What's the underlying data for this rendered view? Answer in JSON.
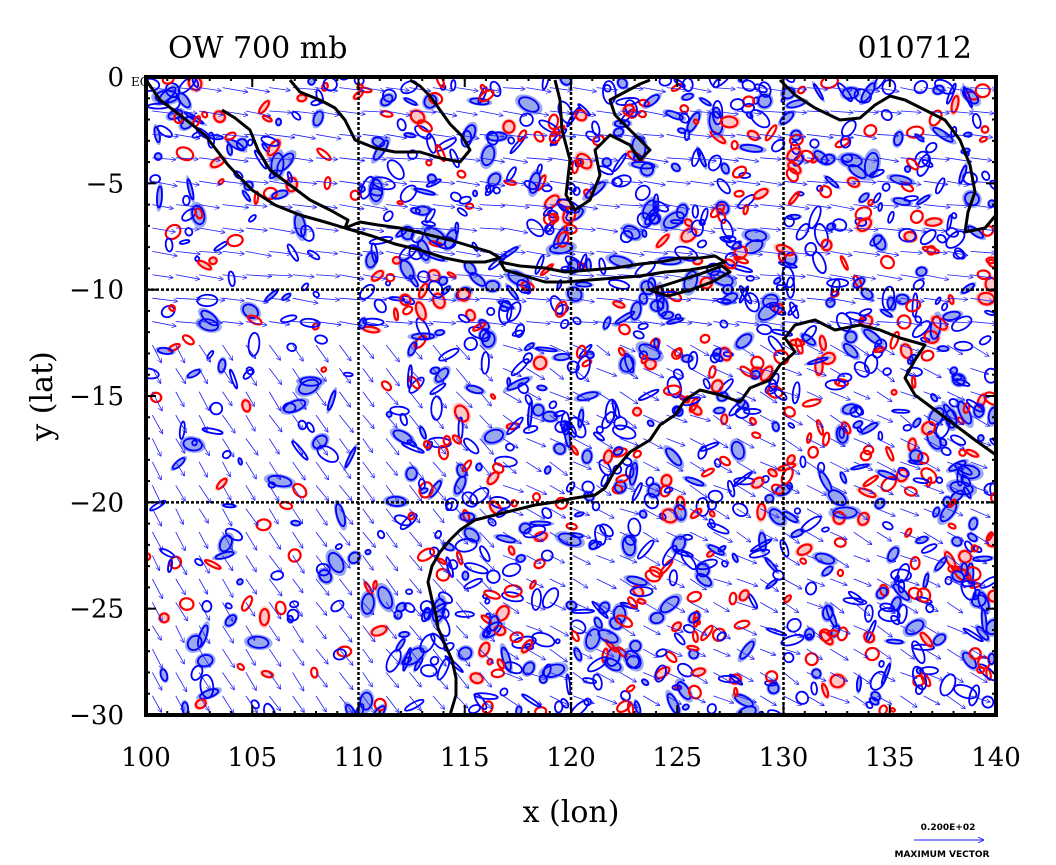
{
  "chart_data": {
    "type": "contour map with wind vectors",
    "title_left": "OW 700 mb",
    "title_right": "010712",
    "xlabel": "x (lon)",
    "ylabel": "y (lat)",
    "xlim": [
      100,
      140
    ],
    "ylim": [
      -30,
      0
    ],
    "x_ticks": [
      100,
      105,
      110,
      115,
      120,
      125,
      130,
      135,
      140
    ],
    "y_ticks": [
      0,
      -5,
      -10,
      -15,
      -20,
      -25,
      -30
    ],
    "x_tick_labels": [
      "100",
      "105",
      "110",
      "115",
      "120",
      "125",
      "130",
      "135",
      "140"
    ],
    "y_tick_labels": [
      "0",
      "−5",
      "−10",
      "−15",
      "−20",
      "−25",
      "−30"
    ],
    "equator_label": "EQ",
    "gridlines_lon": [
      110,
      120,
      130
    ],
    "gridlines_lat": [
      -10,
      -20
    ],
    "vector_legend": {
      "value": "0.200E+02",
      "label": "MAXIMUM VECTOR"
    },
    "colors": {
      "positive": "#ff0000",
      "negative": "#0000ff",
      "positive_fill": "#ffc8c8",
      "negative_fill": "#9aa8ee",
      "coast": "#000000",
      "vector": "#1a1aff"
    }
  }
}
